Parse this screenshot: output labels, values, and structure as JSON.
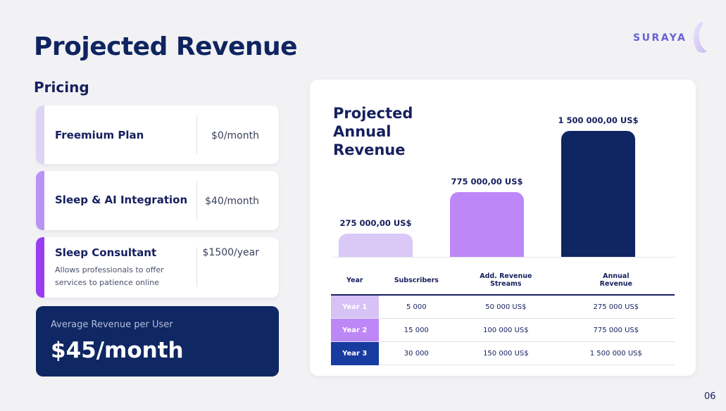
{
  "slide": {
    "title": "Projected Revenue",
    "page_number": "06"
  },
  "brand": {
    "name": "SURAYA"
  },
  "pricing": {
    "heading": "Pricing",
    "plans": [
      {
        "name": "Freemium Plan",
        "price": "$0/month",
        "description": "",
        "accent": "#ddd4f6"
      },
      {
        "name": "Sleep & AI Integration",
        "price": "$40/month",
        "description": "",
        "accent": "#b994f3"
      },
      {
        "name": "Sleep Consultant",
        "price": "$1500/year",
        "description": "Allows professionals to offer services to patience online",
        "accent": "#9a3cf0"
      }
    ]
  },
  "arpu": {
    "label": "Average Revenue per User",
    "value": "$45/month"
  },
  "chart_data": {
    "type": "bar",
    "title": "Projected Annual Revenue",
    "categories": [
      "Year 1",
      "Year 2",
      "Year 3"
    ],
    "values": [
      275000,
      775000,
      1500000
    ],
    "value_labels": [
      "275 000,00 US$",
      "775 000,00 US$",
      "1 500 000,00 US$"
    ],
    "colors": [
      "#dac8f7",
      "#bd87f7",
      "#0f2662"
    ],
    "ylim": [
      0,
      1500000
    ],
    "grid": false,
    "legend": "none"
  },
  "table": {
    "headers": [
      "Year",
      "Subscribers",
      "Add. Revenue Streams",
      "Annual Revenue"
    ],
    "rows": [
      {
        "year": "Year 1",
        "subscribers": "5 000",
        "streams": "50 000 US$",
        "revenue": "275 000 US$",
        "color": "#d7c2f5"
      },
      {
        "year": "Year 2",
        "subscribers": "15 000",
        "streams": "100 000 US$",
        "revenue": "775 000 US$",
        "color": "#bd87f7"
      },
      {
        "year": "Year 3",
        "subscribers": "30 000",
        "streams": "150 000 US$",
        "revenue": "1 500 000 US$",
        "color": "#183ba0"
      }
    ]
  },
  "colors": {
    "navy": "#0f2763",
    "text": "#16205e",
    "background": "#f2f2f4",
    "brand": "#6a5fd8"
  }
}
